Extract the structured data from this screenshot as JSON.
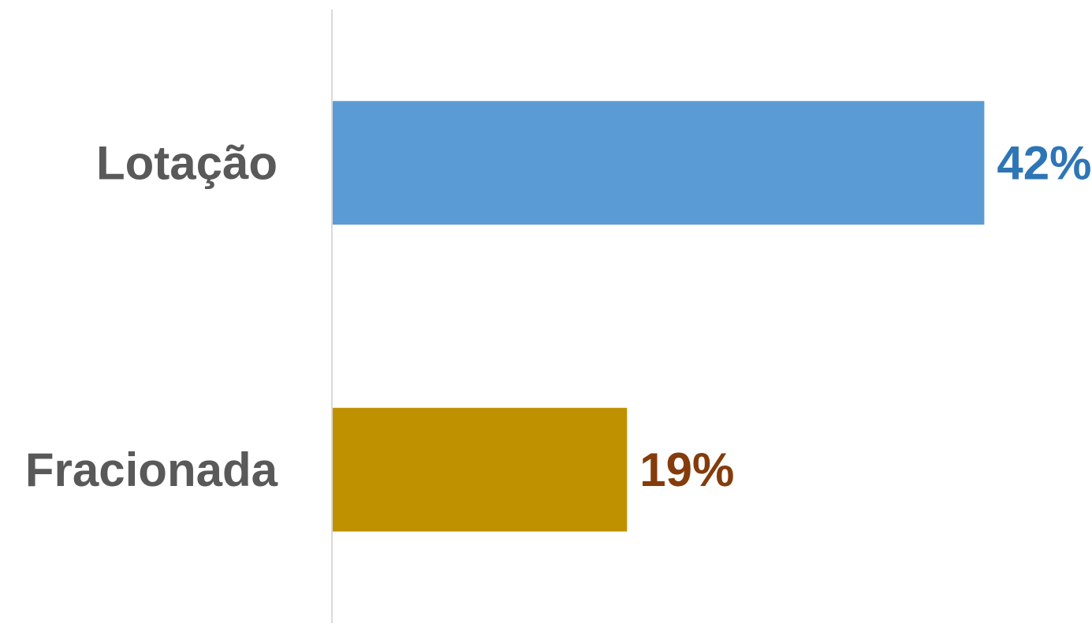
{
  "chart_data": {
    "type": "bar",
    "orientation": "horizontal",
    "categories": [
      "Lotação",
      "Fracionada"
    ],
    "values": [
      42,
      19
    ],
    "value_labels": [
      "42%",
      "19%"
    ],
    "xlim": [
      0,
      50
    ],
    "bar_colors": [
      "#5B9BD5",
      "#BF9000"
    ],
    "label_colors": [
      "#2E75B6",
      "#843C0C"
    ],
    "category_label_color": "#595959",
    "axis_color": "#D9D9D9",
    "grid": false,
    "legend": "none"
  }
}
